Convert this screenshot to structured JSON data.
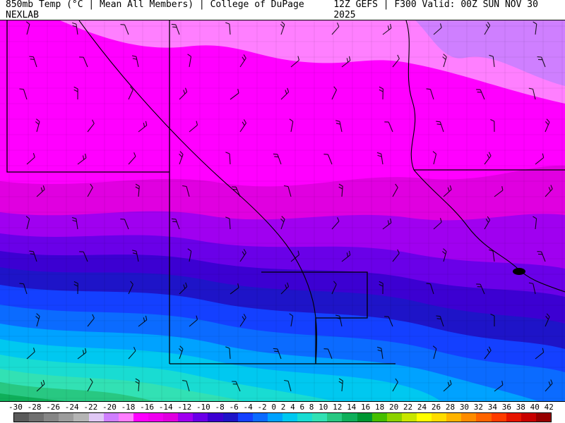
{
  "header": {
    "left_title": "850mb Temp (°C | Mean All Members) | College of DuPage NEXLAB",
    "right_title": "12Z GEFS | F300 Valid: 00Z SUN NOV 30 2025"
  },
  "map": {
    "description": "850mb temperature filled contours over central US states with wind barbs, state borders, county lines and rivers",
    "border_color": "#000000",
    "bands": [
      {
        "range": "-18 to -16",
        "color": "#cf7fff"
      },
      {
        "range": "-16 to -14",
        "color": "#ff7fff"
      },
      {
        "range": "-14 to -10",
        "color": "#ff00ff"
      },
      {
        "range": "-10 to -8",
        "color": "#e000e0"
      },
      {
        "range": "-8 to -6",
        "color": "#a000f0"
      },
      {
        "range": "-6 to -4",
        "color": "#6a00e8"
      },
      {
        "range": "-4 to -2",
        "color": "#3c00d2"
      },
      {
        "range": "-2 to 0",
        "color": "#1e14c8"
      },
      {
        "range": "0 to 2",
        "color": "#1440ff"
      },
      {
        "range": "2 to 4",
        "color": "#0b6bff"
      },
      {
        "range": "4 to 6",
        "color": "#00a2ff"
      },
      {
        "range": "6 to 8",
        "color": "#00c8f0"
      },
      {
        "range": "8 to 10",
        "color": "#19dcd2"
      },
      {
        "range": "10 to 12",
        "color": "#32e1b4"
      },
      {
        "range": "12 to 14",
        "color": "#28c882"
      },
      {
        "range": "14 to 16",
        "color": "#0faf5a"
      }
    ]
  },
  "colorbar": {
    "unit": "°C",
    "ticks": [
      "-30",
      "-28",
      "-26",
      "-24",
      "-22",
      "-20",
      "-18",
      "-16",
      "-14",
      "-12",
      "-10",
      "-8",
      "-6",
      "-4",
      "-2",
      "0",
      "2",
      "4",
      "6",
      "8",
      "10",
      "12",
      "14",
      "16",
      "18",
      "20",
      "22",
      "24",
      "26",
      "28",
      "30",
      "32",
      "34",
      "36",
      "38",
      "40",
      "42"
    ],
    "segment_colors": [
      "#5a5a5a",
      "#707070",
      "#868686",
      "#9c9c9c",
      "#b4b4b4",
      "#e0c8f5",
      "#cf7fff",
      "#ff7fff",
      "#ff00ff",
      "#f000f0",
      "#e000e0",
      "#a000f0",
      "#6a00e8",
      "#3c00d2",
      "#1e14c8",
      "#1440ff",
      "#0b6bff",
      "#00a2ff",
      "#00c8f0",
      "#19dcd2",
      "#32e1b4",
      "#28c882",
      "#0faf5a",
      "#009632",
      "#46be00",
      "#8cd200",
      "#c8e600",
      "#ffff00",
      "#ffdc00",
      "#ffb400",
      "#ff8c00",
      "#ff6400",
      "#ff3c00",
      "#e61400",
      "#c80000",
      "#960000"
    ]
  },
  "chart_data": {
    "type": "heatmap",
    "title": "850mb Temp (°C | Mean All Members)",
    "source": "College of DuPage NEXLAB",
    "model_run": "12Z GEFS",
    "forecast_hour": "F300",
    "valid": "00Z SUN NOV 30 2025",
    "scale_range": [
      -30,
      42
    ],
    "scale_step": 2,
    "north_to_south_band_values": [
      -17,
      -15,
      -12,
      -9,
      -7,
      -5,
      -3,
      -1,
      1,
      3,
      5,
      7,
      9,
      11,
      13,
      15
    ]
  }
}
